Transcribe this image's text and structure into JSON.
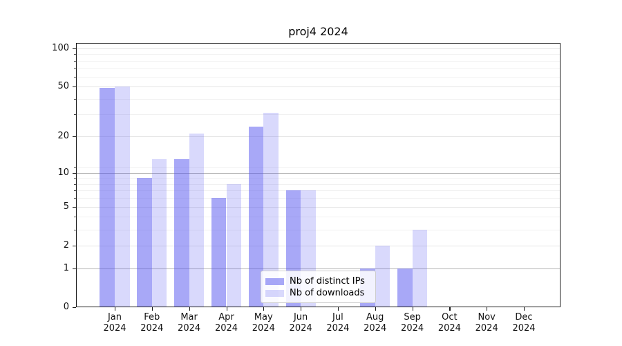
{
  "title": "proj4 2024",
  "legend": {
    "items": [
      "Nb of distinct IPs",
      "Nb of downloads"
    ],
    "position": "lower center"
  },
  "chart_data": {
    "type": "bar",
    "title": "proj4 2024",
    "categories": [
      "Jan",
      "Feb",
      "Mar",
      "Apr",
      "May",
      "Jun",
      "Jul",
      "Aug",
      "Sep",
      "Oct",
      "Nov",
      "Dec"
    ],
    "category_year": "2024",
    "series": [
      {
        "name": "Nb of distinct IPs",
        "values": [
          49,
          9,
          13,
          6,
          24,
          7,
          0,
          1,
          1,
          0,
          0,
          0
        ],
        "color": "rgba(82,82,240,0.50)"
      },
      {
        "name": "Nb of downloads",
        "values": [
          50,
          13,
          21,
          8,
          31,
          7,
          0,
          2,
          3,
          0,
          0,
          0
        ],
        "color": "rgba(82,82,240,0.22)"
      }
    ],
    "xlabel": "",
    "ylabel": "",
    "y_scale": "log10(1+v)",
    "y_ticks": [
      0,
      1,
      2,
      5,
      10,
      20,
      50,
      100
    ],
    "y_minor_ticks": [
      3,
      4,
      6,
      7,
      8,
      9,
      11,
      30,
      40,
      60,
      70,
      80,
      90
    ],
    "y_emphasized_gridlines": [
      1,
      10
    ],
    "ylim": [
      0,
      110
    ],
    "grid": "on",
    "legend_position": "lower center"
  },
  "colors": {
    "bar_distinct_ips": "rgba(82,82,240,0.50)",
    "bar_downloads": "rgba(82,82,240,0.22)",
    "grid_major": "#e4e4e4",
    "grid_emphasis": "#b3b3b3",
    "grid_minor": "#f1f1f1",
    "frame": "#1a1a1a",
    "text": "#111111"
  }
}
